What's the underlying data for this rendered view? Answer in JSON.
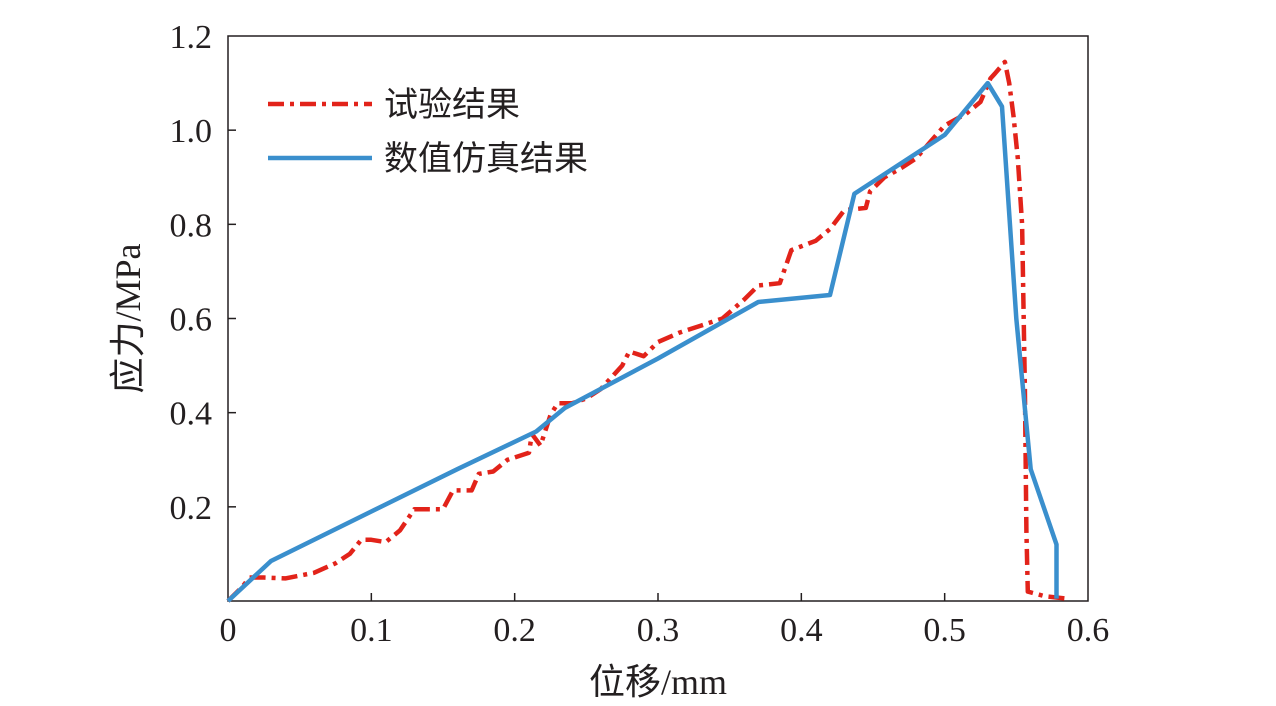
{
  "chart_data": {
    "type": "line",
    "title": "",
    "xlabel": "位移/mm",
    "ylabel": "应力/MPa",
    "xlim": [
      0,
      0.6
    ],
    "ylim": [
      0,
      1.2
    ],
    "x_ticks": [
      0,
      0.1,
      0.2,
      0.3,
      0.4,
      0.5,
      0.6
    ],
    "x_tick_labels": [
      "0",
      "0.1",
      "0.2",
      "0.3",
      "0.4",
      "0.5",
      "0.6"
    ],
    "y_ticks": [
      0.2,
      0.4,
      0.6,
      0.8,
      1.0,
      1.2
    ],
    "y_tick_labels": [
      "0.2",
      "0.4",
      "0.6",
      "0.8",
      "1.0",
      "1.2"
    ],
    "grid": false,
    "legend_position": "top-left",
    "series": [
      {
        "name": "试验结果",
        "color": "#e2231a",
        "style": "dash-dot",
        "points": [
          [
            0.0,
            0.0
          ],
          [
            0.01,
            0.03
          ],
          [
            0.015,
            0.05
          ],
          [
            0.025,
            0.05
          ],
          [
            0.04,
            0.048
          ],
          [
            0.06,
            0.06
          ],
          [
            0.075,
            0.08
          ],
          [
            0.085,
            0.1
          ],
          [
            0.093,
            0.13
          ],
          [
            0.1,
            0.13
          ],
          [
            0.11,
            0.125
          ],
          [
            0.12,
            0.15
          ],
          [
            0.13,
            0.195
          ],
          [
            0.15,
            0.195
          ],
          [
            0.157,
            0.235
          ],
          [
            0.17,
            0.235
          ],
          [
            0.175,
            0.27
          ],
          [
            0.185,
            0.275
          ],
          [
            0.195,
            0.3
          ],
          [
            0.21,
            0.315
          ],
          [
            0.212,
            0.355
          ],
          [
            0.218,
            0.33
          ],
          [
            0.225,
            0.395
          ],
          [
            0.23,
            0.42
          ],
          [
            0.24,
            0.42
          ],
          [
            0.25,
            0.43
          ],
          [
            0.26,
            0.45
          ],
          [
            0.275,
            0.5
          ],
          [
            0.28,
            0.53
          ],
          [
            0.29,
            0.52
          ],
          [
            0.3,
            0.55
          ],
          [
            0.315,
            0.57
          ],
          [
            0.33,
            0.585
          ],
          [
            0.345,
            0.6
          ],
          [
            0.36,
            0.64
          ],
          [
            0.37,
            0.67
          ],
          [
            0.385,
            0.675
          ],
          [
            0.393,
            0.745
          ],
          [
            0.41,
            0.765
          ],
          [
            0.42,
            0.79
          ],
          [
            0.43,
            0.83
          ],
          [
            0.445,
            0.835
          ],
          [
            0.448,
            0.87
          ],
          [
            0.458,
            0.9
          ],
          [
            0.47,
            0.92
          ],
          [
            0.48,
            0.94
          ],
          [
            0.49,
            0.975
          ],
          [
            0.5,
            1.01
          ],
          [
            0.515,
            1.035
          ],
          [
            0.525,
            1.06
          ],
          [
            0.532,
            1.11
          ],
          [
            0.535,
            1.12
          ],
          [
            0.542,
            1.145
          ],
          [
            0.545,
            1.1
          ],
          [
            0.548,
            1.03
          ],
          [
            0.551,
            0.94
          ],
          [
            0.554,
            0.8
          ],
          [
            0.556,
            0.45
          ],
          [
            0.557,
            0.15
          ],
          [
            0.558,
            0.02
          ],
          [
            0.57,
            0.01
          ],
          [
            0.585,
            0.005
          ]
        ]
      },
      {
        "name": "数值仿真结果",
        "color": "#3a8fcd",
        "style": "solid",
        "points": [
          [
            0.0,
            0.0
          ],
          [
            0.03,
            0.085
          ],
          [
            0.1,
            0.19
          ],
          [
            0.16,
            0.28
          ],
          [
            0.215,
            0.36
          ],
          [
            0.235,
            0.41
          ],
          [
            0.3,
            0.515
          ],
          [
            0.37,
            0.635
          ],
          [
            0.42,
            0.65
          ],
          [
            0.437,
            0.865
          ],
          [
            0.5,
            0.99
          ],
          [
            0.53,
            1.1
          ],
          [
            0.54,
            1.05
          ],
          [
            0.55,
            0.6
          ],
          [
            0.56,
            0.28
          ],
          [
            0.578,
            0.12
          ],
          [
            0.578,
            0.005
          ]
        ]
      }
    ]
  }
}
